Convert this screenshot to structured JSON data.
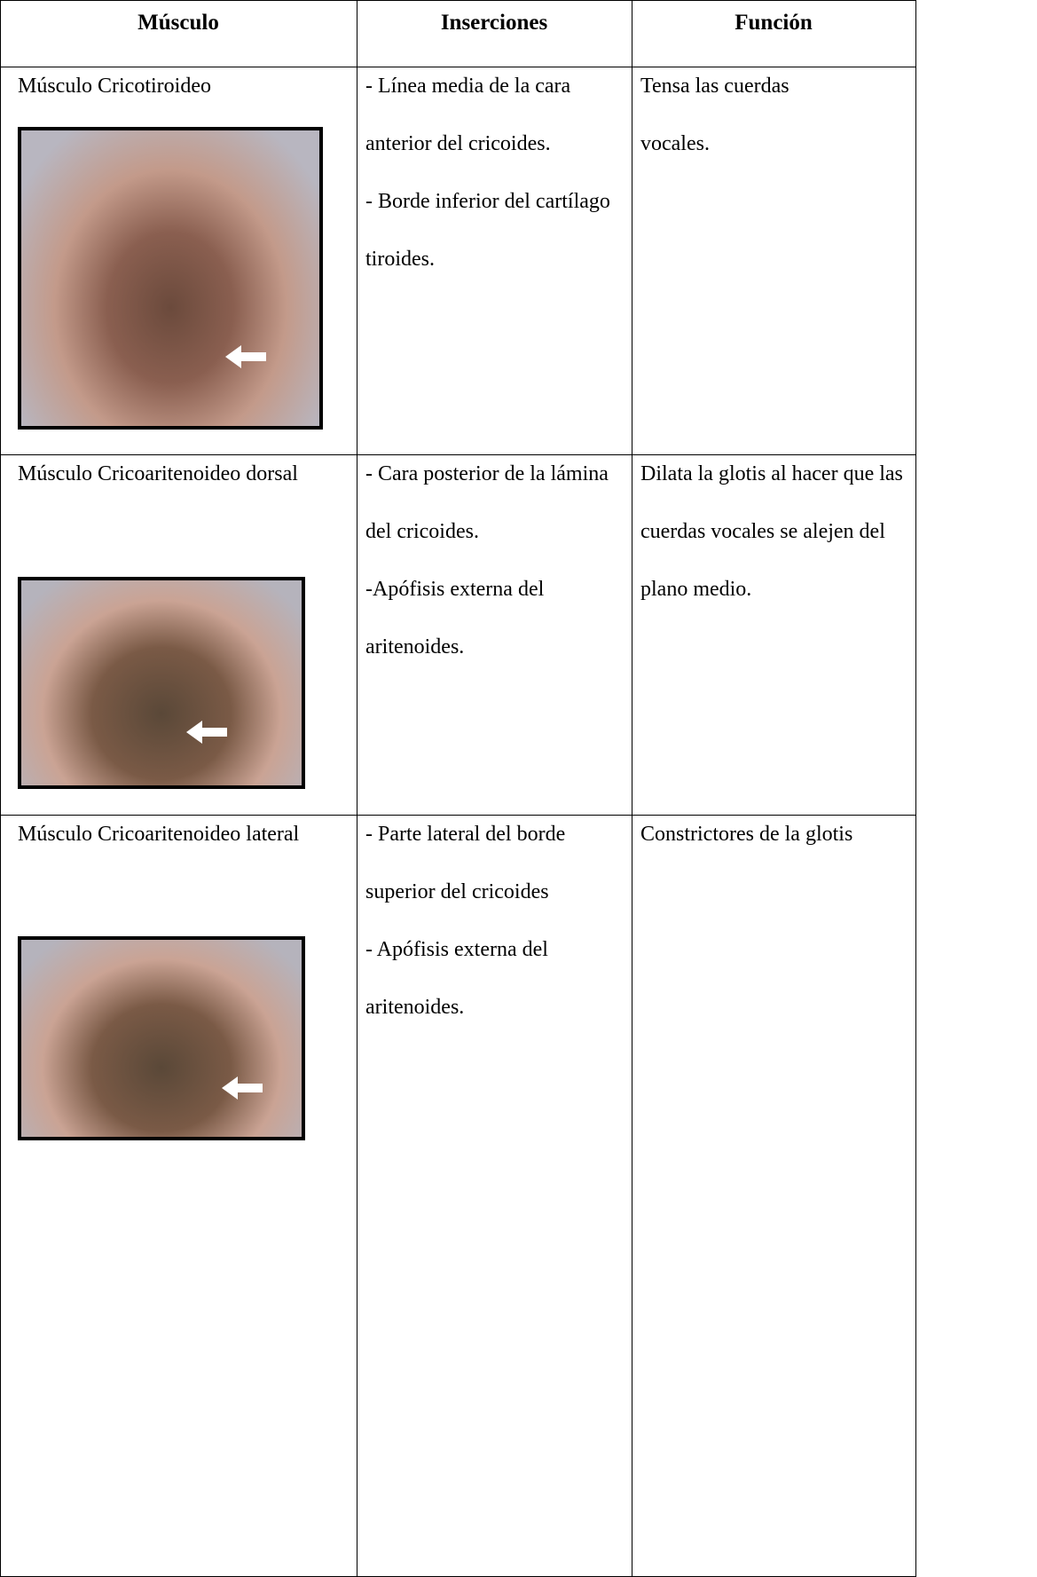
{
  "table": {
    "headers": [
      "Músculo",
      "Inserciones",
      "Función"
    ],
    "rows": [
      {
        "muscle": "Músculo Cricotiroideo",
        "insertions": [
          "- Línea media de la cara anterior del cricoides.",
          "- Borde inferior del cartílago tiroides."
        ],
        "function": "Tensa las cuerdas vocales."
      },
      {
        "muscle": "Músculo Cricoaritenoideo dorsal",
        "insertions": [
          "- Cara posterior de la lámina del cricoides.",
          "-Apófisis externa del aritenoides."
        ],
        "function": "Dilata la glotis al hacer que las cuerdas vocales se alejen del plano medio."
      },
      {
        "muscle": "Músculo Cricoaritenoideo lateral",
        "insertions": [
          "- Parte lateral del borde superior del cricoides",
          "- Apófisis externa del aritenoides."
        ],
        "function": "Constrictores de la glotis"
      }
    ]
  }
}
